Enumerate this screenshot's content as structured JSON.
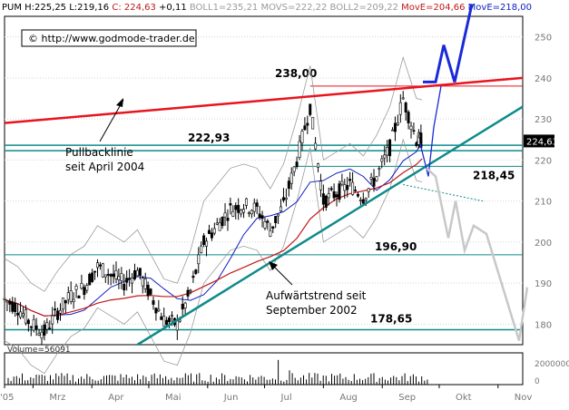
{
  "header": {
    "symbol": "PUM",
    "h": "H:225,25",
    "l": "L:219,16",
    "c": "C: 224,63",
    "chg": "+0,11",
    "boll1": "BOLL1=235,21",
    "movs": "MOVS=222,22",
    "boll2": "BOLL2=209,22",
    "move_red": "MovE=204,66",
    "move_blue": "MovE=218,00"
  },
  "copyright": "© http://www.godmode-trader.de",
  "last_price_label": "224,63",
  "volume_label": "Volume=56091",
  "colors": {
    "resistance_line": "#e8141e",
    "trend_line": "#0f8a8a",
    "ma_blue": "#1020c0",
    "ma_red": "#c01818",
    "boll": "#9a9a9a",
    "candles": "#000000",
    "projection_blue": "#1a2ad8",
    "projection_gray": "#c8c8c8",
    "price_box": "#000000"
  },
  "chart_data": {
    "type": "candlestick",
    "title": "",
    "x_axis": {
      "labels": [
        "'05",
        "Mrz",
        "Apr",
        "Mai",
        "Jun",
        "Jul",
        "Aug",
        "Sep",
        "Okt",
        "Nov"
      ],
      "start": "2005-02-14",
      "end": "2005-11-14"
    },
    "y_axis": {
      "min": 175,
      "max": 255,
      "ticks": [
        180,
        190,
        200,
        210,
        220,
        230,
        240,
        250
      ],
      "side": "right"
    },
    "price_series": [
      {
        "date": "2005-02-14",
        "close": 186
      },
      {
        "date": "2005-02-21",
        "close": 184
      },
      {
        "date": "2005-02-28",
        "close": 180
      },
      {
        "date": "2005-03-07",
        "close": 178
      },
      {
        "date": "2005-03-14",
        "close": 183
      },
      {
        "date": "2005-03-21",
        "close": 187
      },
      {
        "date": "2005-03-28",
        "close": 189
      },
      {
        "date": "2005-04-04",
        "close": 194
      },
      {
        "date": "2005-04-11",
        "close": 192
      },
      {
        "date": "2005-04-18",
        "close": 190
      },
      {
        "date": "2005-04-25",
        "close": 193
      },
      {
        "date": "2005-05-02",
        "close": 187
      },
      {
        "date": "2005-05-09",
        "close": 181
      },
      {
        "date": "2005-05-16",
        "close": 180
      },
      {
        "date": "2005-05-23",
        "close": 188
      },
      {
        "date": "2005-05-30",
        "close": 200
      },
      {
        "date": "2005-06-06",
        "close": 204
      },
      {
        "date": "2005-06-13",
        "close": 208
      },
      {
        "date": "2005-06-20",
        "close": 209
      },
      {
        "date": "2005-06-27",
        "close": 208
      },
      {
        "date": "2005-07-04",
        "close": 203
      },
      {
        "date": "2005-07-11",
        "close": 209
      },
      {
        "date": "2005-07-18",
        "close": 220
      },
      {
        "date": "2005-07-25",
        "close": 233
      },
      {
        "date": "2005-08-01",
        "close": 210
      },
      {
        "date": "2005-08-08",
        "close": 212
      },
      {
        "date": "2005-08-15",
        "close": 214
      },
      {
        "date": "2005-08-22",
        "close": 211
      },
      {
        "date": "2005-08-29",
        "close": 216
      },
      {
        "date": "2005-09-05",
        "close": 223
      },
      {
        "date": "2005-09-12",
        "close": 235
      },
      {
        "date": "2005-09-19",
        "close": 225
      },
      {
        "date": "2005-09-22",
        "close": 224.63
      }
    ],
    "horizontal_levels": [
      {
        "label": "238,00",
        "value": 238
      },
      {
        "label": "222,93",
        "value": 222.93
      },
      {
        "label": "218,45",
        "value": 218.45
      },
      {
        "label": "196,90",
        "value": 196.9
      },
      {
        "label": "178,65",
        "value": 178.65
      }
    ],
    "lines": [
      {
        "name": "Pullbacklinie seit April 2004",
        "color": "#e8141e",
        "from": {
          "date": "2005-02-14",
          "value": 229
        },
        "to": {
          "date": "2005-11-14",
          "value": 240
        }
      },
      {
        "name": "Aufwärtstrend seit September 2002",
        "color": "#0f8a8a",
        "from": {
          "date": "2005-04-25",
          "value": 175
        },
        "to": {
          "date": "2005-11-14",
          "value": 233
        }
      }
    ],
    "annotations": [
      {
        "text": "Pullbacklinie\nseit April 2004"
      },
      {
        "text": "Aufwärtstrend seit\nSeptember 2002"
      }
    ],
    "volume": {
      "label": "Volume=56091",
      "ticks": [
        2000000,
        0
      ]
    }
  }
}
